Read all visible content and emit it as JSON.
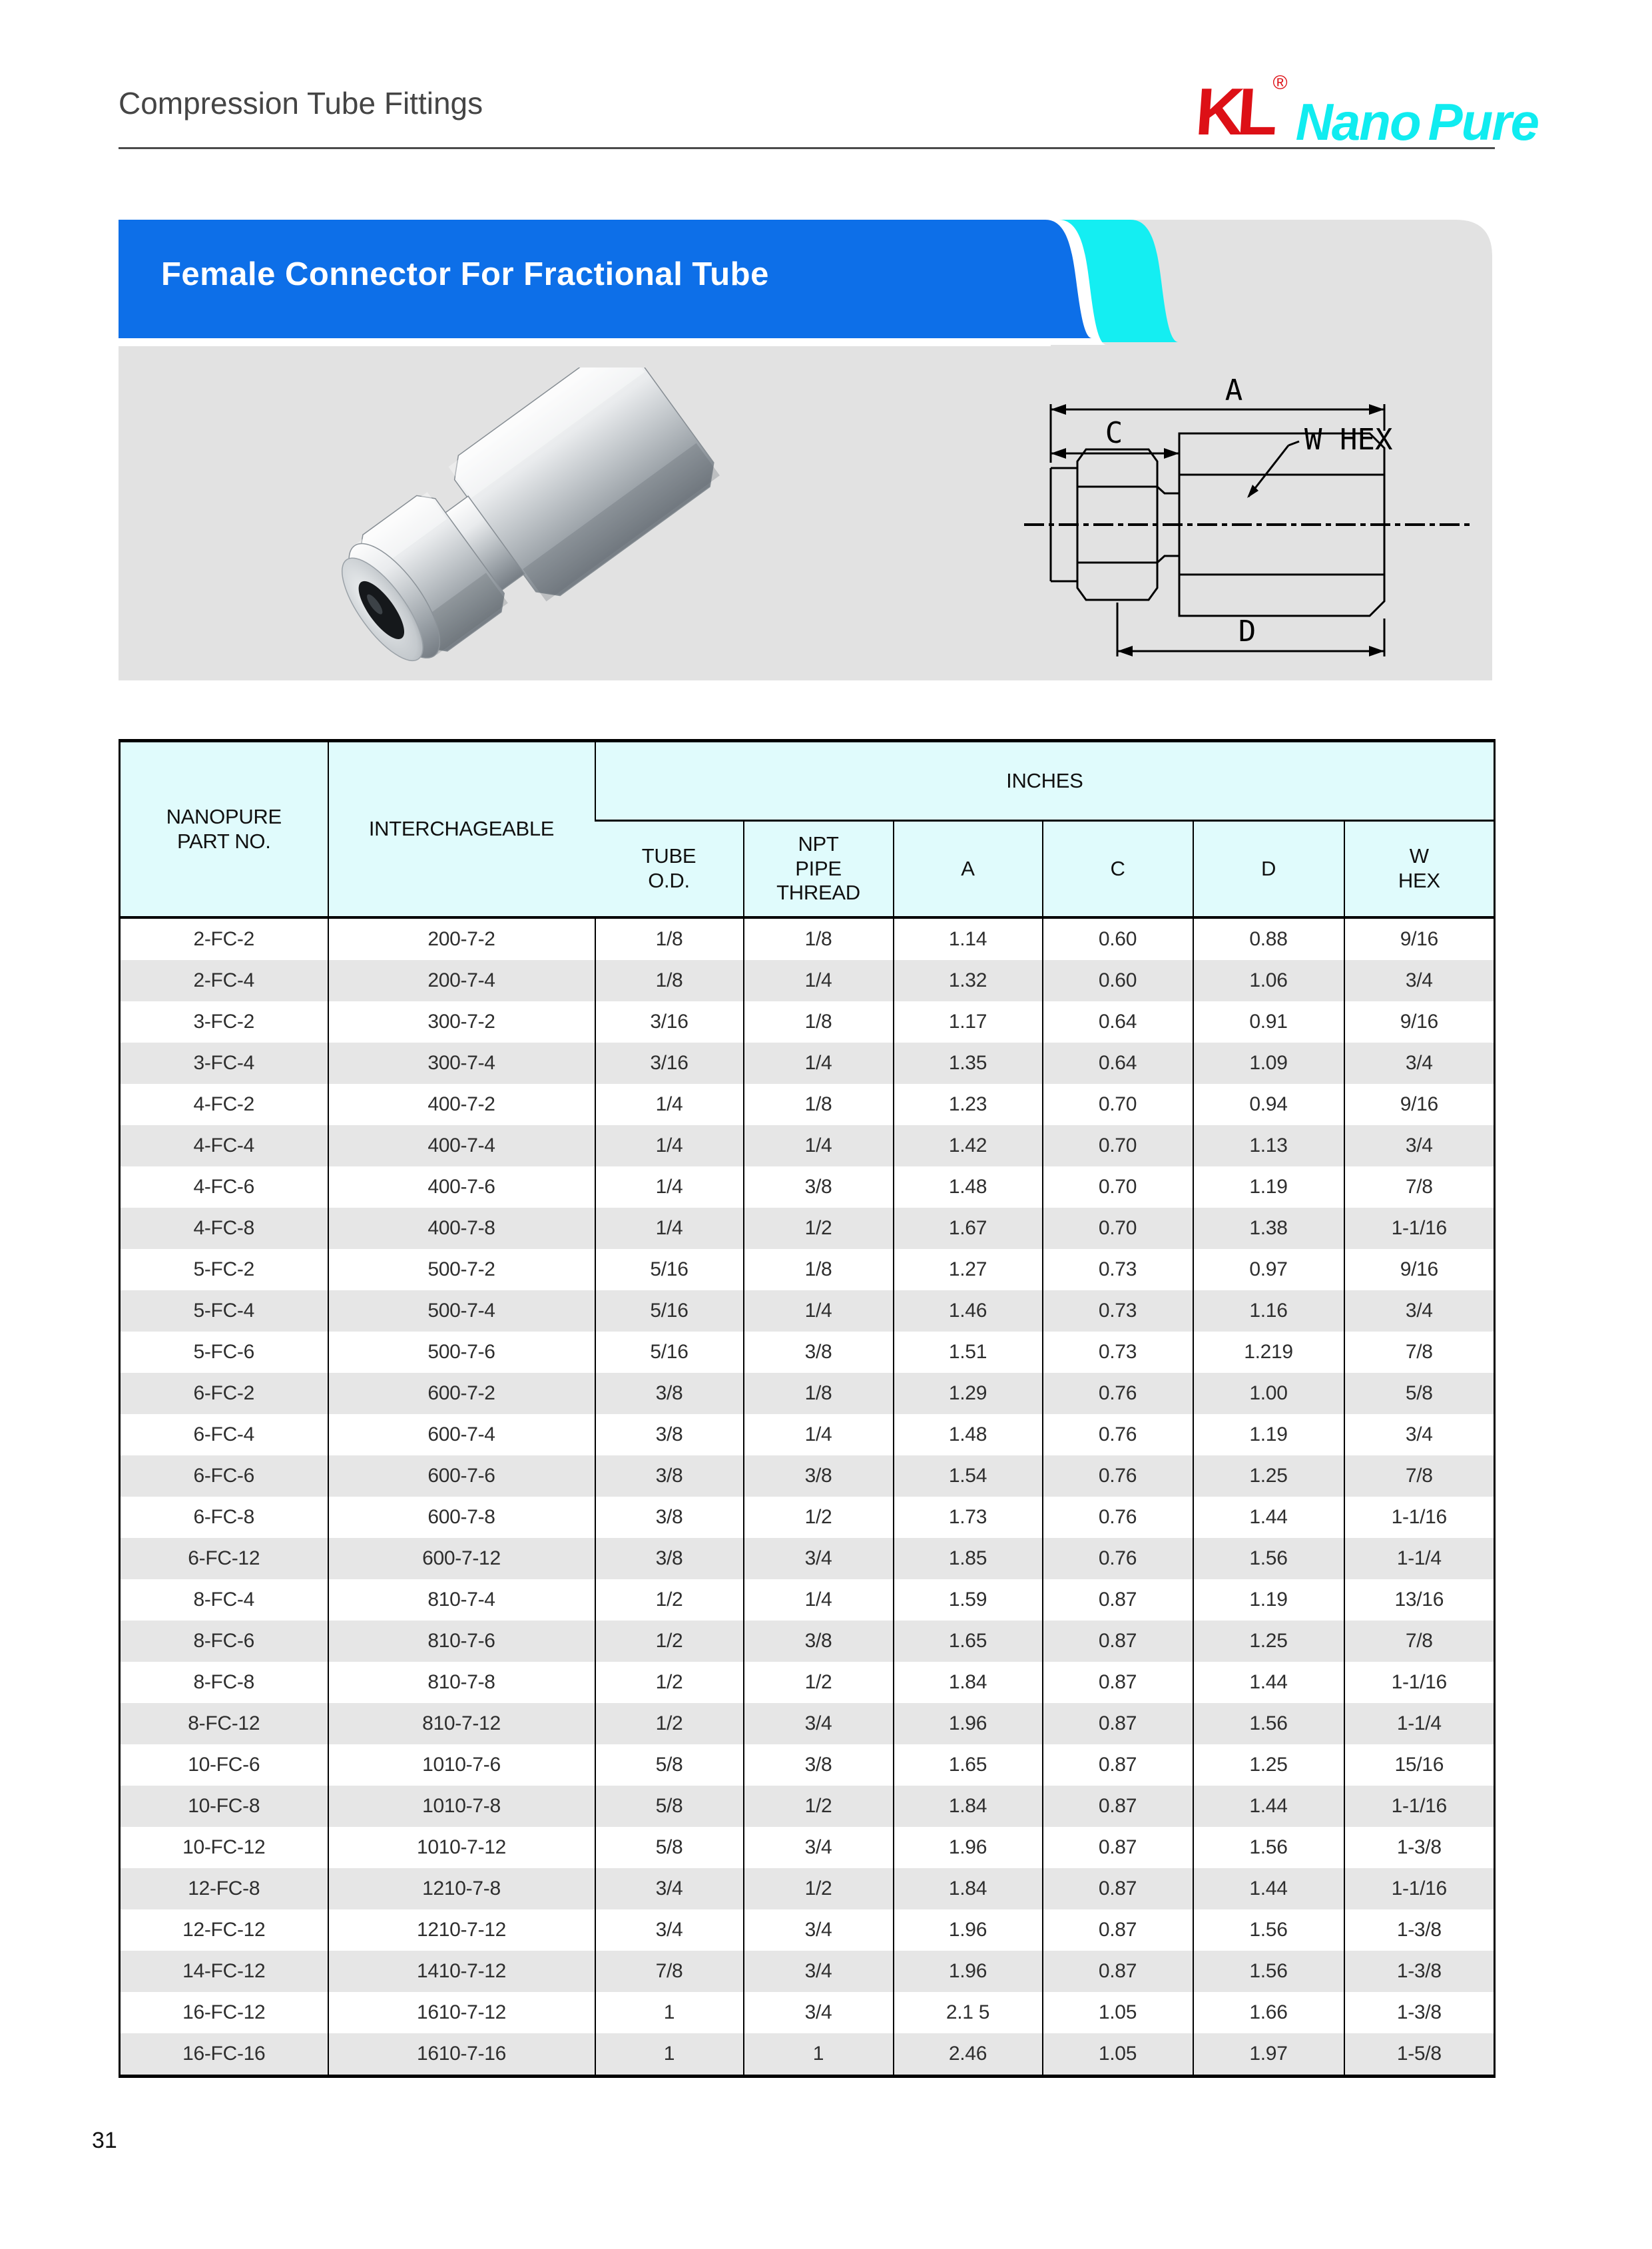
{
  "header": {
    "title": "Compression Tube Fittings",
    "logo": {
      "mark": "KL",
      "registered": "®",
      "brand_nano": "Nano",
      "brand_pure": "Pure"
    }
  },
  "banner": {
    "title": "Female Connector For Fractional Tube"
  },
  "drawing": {
    "labels": {
      "a": "A",
      "c": "C",
      "w_hex": "W HEX",
      "d": "D"
    }
  },
  "table": {
    "col_headers": {
      "part_no": "NANOPURE\nPART NO.",
      "interchangeable": "INTERCHAGEABLE",
      "inches_group": "INCHES",
      "tube_od": "TUBE\nO.D.",
      "npt": "NPT\nPIPE\nTHREAD",
      "a": "A",
      "c": "C",
      "d": "D",
      "w_hex": "W\nHEX"
    },
    "rows": [
      [
        "2-FC-2",
        "200-7-2",
        "1/8",
        "1/8",
        "1.14",
        "0.60",
        "0.88",
        "9/16"
      ],
      [
        "2-FC-4",
        "200-7-4",
        "1/8",
        "1/4",
        "1.32",
        "0.60",
        "1.06",
        "3/4"
      ],
      [
        "3-FC-2",
        "300-7-2",
        "3/16",
        "1/8",
        "1.17",
        "0.64",
        "0.91",
        "9/16"
      ],
      [
        "3-FC-4",
        "300-7-4",
        "3/16",
        "1/4",
        "1.35",
        "0.64",
        "1.09",
        "3/4"
      ],
      [
        "4-FC-2",
        "400-7-2",
        "1/4",
        "1/8",
        "1.23",
        "0.70",
        "0.94",
        "9/16"
      ],
      [
        "4-FC-4",
        "400-7-4",
        "1/4",
        "1/4",
        "1.42",
        "0.70",
        "1.13",
        "3/4"
      ],
      [
        "4-FC-6",
        "400-7-6",
        "1/4",
        "3/8",
        "1.48",
        "0.70",
        "1.19",
        "7/8"
      ],
      [
        "4-FC-8",
        "400-7-8",
        "1/4",
        "1/2",
        "1.67",
        "0.70",
        "1.38",
        "1-1/16"
      ],
      [
        "5-FC-2",
        "500-7-2",
        "5/16",
        "1/8",
        "1.27",
        "0.73",
        "0.97",
        "9/16"
      ],
      [
        "5-FC-4",
        "500-7-4",
        "5/16",
        "1/4",
        "1.46",
        "0.73",
        "1.16",
        "3/4"
      ],
      [
        "5-FC-6",
        "500-7-6",
        "5/16",
        "3/8",
        "1.51",
        "0.73",
        "1.219",
        "7/8"
      ],
      [
        "6-FC-2",
        "600-7-2",
        "3/8",
        "1/8",
        "1.29",
        "0.76",
        "1.00",
        "5/8"
      ],
      [
        "6-FC-4",
        "600-7-4",
        "3/8",
        "1/4",
        "1.48",
        "0.76",
        "1.19",
        "3/4"
      ],
      [
        "6-FC-6",
        "600-7-6",
        "3/8",
        "3/8",
        "1.54",
        "0.76",
        "1.25",
        "7/8"
      ],
      [
        "6-FC-8",
        "600-7-8",
        "3/8",
        "1/2",
        "1.73",
        "0.76",
        "1.44",
        "1-1/16"
      ],
      [
        "6-FC-12",
        "600-7-12",
        "3/8",
        "3/4",
        "1.85",
        "0.76",
        "1.56",
        "1-1/4"
      ],
      [
        "8-FC-4",
        "810-7-4",
        "1/2",
        "1/4",
        "1.59",
        "0.87",
        "1.19",
        "13/16"
      ],
      [
        "8-FC-6",
        "810-7-6",
        "1/2",
        "3/8",
        "1.65",
        "0.87",
        "1.25",
        "7/8"
      ],
      [
        "8-FC-8",
        "810-7-8",
        "1/2",
        "1/2",
        "1.84",
        "0.87",
        "1.44",
        "1-1/16"
      ],
      [
        "8-FC-12",
        "810-7-12",
        "1/2",
        "3/4",
        "1.96",
        "0.87",
        "1.56",
        "1-1/4"
      ],
      [
        "10-FC-6",
        "1010-7-6",
        "5/8",
        "3/8",
        "1.65",
        "0.87",
        "1.25",
        "15/16"
      ],
      [
        "10-FC-8",
        "1010-7-8",
        "5/8",
        "1/2",
        "1.84",
        "0.87",
        "1.44",
        "1-1/16"
      ],
      [
        "10-FC-12",
        "1010-7-12",
        "5/8",
        "3/4",
        "1.96",
        "0.87",
        "1.56",
        "1-3/8"
      ],
      [
        "12-FC-8",
        "1210-7-8",
        "3/4",
        "1/2",
        "1.84",
        "0.87",
        "1.44",
        "1-1/16"
      ],
      [
        "12-FC-12",
        "1210-7-12",
        "3/4",
        "3/4",
        "1.96",
        "0.87",
        "1.56",
        "1-3/8"
      ],
      [
        "14-FC-12",
        "1410-7-12",
        "7/8",
        "3/4",
        "1.96",
        "0.87",
        "1.56",
        "1-3/8"
      ],
      [
        "16-FC-12",
        "1610-7-12",
        "1",
        "3/4",
        "2.1 5",
        "1.05",
        "1.66",
        "1-3/8"
      ],
      [
        "16-FC-16",
        "1610-7-16",
        "1",
        "1",
        "2.46",
        "1.05",
        "1.97",
        "1-5/8"
      ]
    ]
  },
  "footer": {
    "page_number": "31"
  },
  "colors": {
    "banner_blue": "#0d6fe8",
    "accent_cyan": "#14eef2",
    "panel_gray": "#e2e2e2",
    "header_cyan": "#e0fbfc",
    "row_alt_gray": "#e6e6e6",
    "logo_red": "#dd1016"
  }
}
